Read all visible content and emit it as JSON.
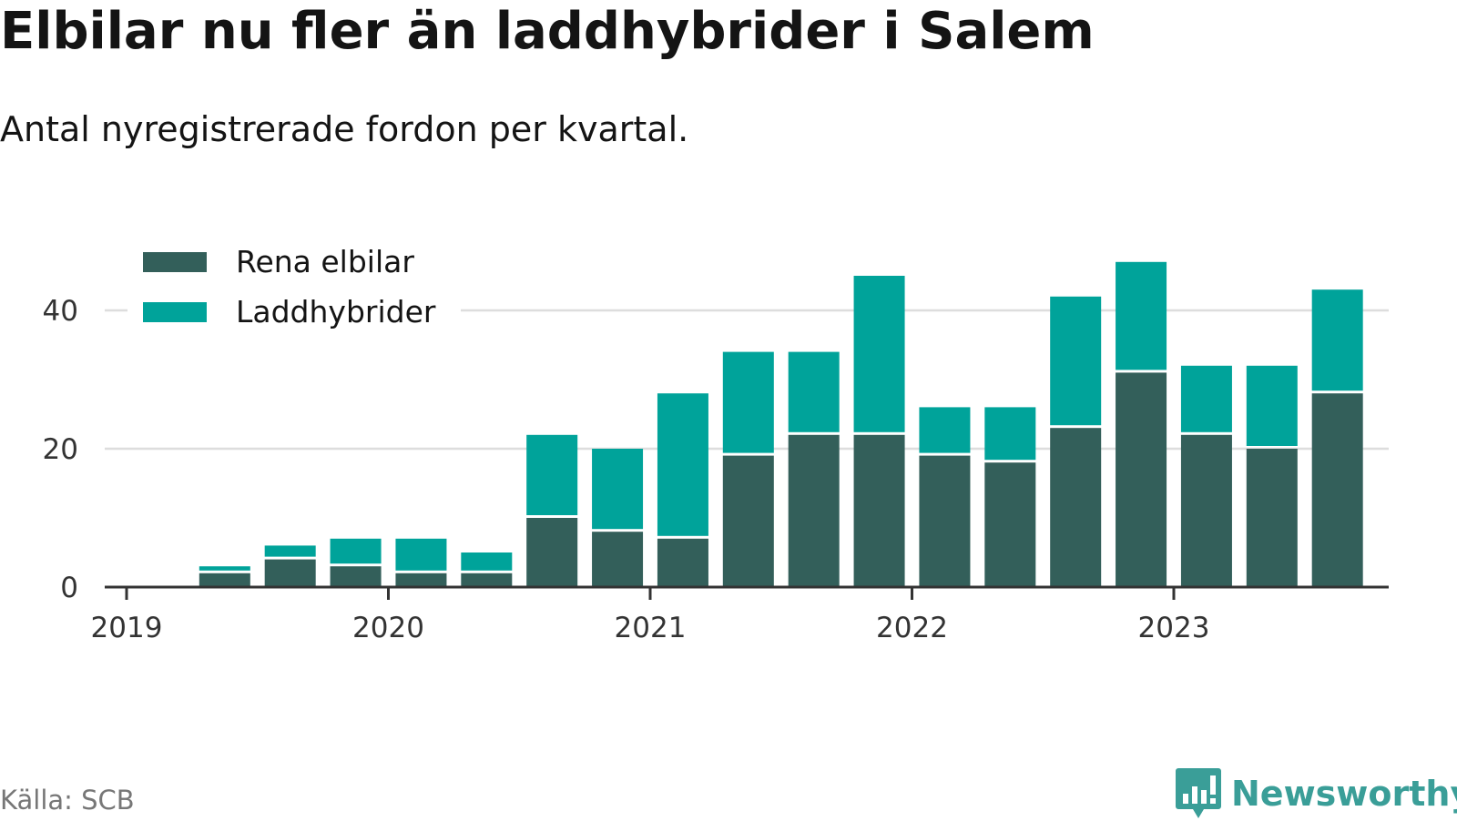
{
  "title": "Elbilar nu fler än laddhybrider i Salem",
  "subtitle": "Antal nyregistrerade fordon per kvartal.",
  "source": "Källa: SCB",
  "brand": "Newsworthy",
  "icons": {
    "brand": "newsworthy-bar-chart-icon"
  },
  "colors": {
    "rena_elbilar": "#335f5a",
    "laddhybrider": "#00a39a",
    "grid": "#dddddd",
    "axis": "#333333",
    "brand": "#3a9e98"
  },
  "chart_data": {
    "type": "bar",
    "stacked": true,
    "x_tick_labels": [
      "2019",
      "2020",
      "2021",
      "2022",
      "2023"
    ],
    "y_tick_labels": [
      "0",
      "20",
      "40"
    ],
    "ylim": [
      0,
      48
    ],
    "grid": true,
    "legend": "top-left",
    "categories": [
      "2019 Q2",
      "2019 Q3",
      "2019 Q4",
      "2020 Q1",
      "2020 Q2",
      "2020 Q3",
      "2020 Q4",
      "2021 Q1",
      "2021 Q2",
      "2021 Q3",
      "2021 Q4",
      "2022 Q1",
      "2022 Q2",
      "2022 Q3",
      "2022 Q4",
      "2023 Q1",
      "2023 Q2",
      "2023 Q3"
    ],
    "series": [
      {
        "name": "Rena elbilar",
        "values": [
          2,
          4,
          3,
          2,
          2,
          10,
          8,
          7,
          19,
          22,
          22,
          19,
          18,
          23,
          31,
          22,
          20,
          28
        ]
      },
      {
        "name": "Laddhybrider",
        "values": [
          1,
          2,
          4,
          5,
          3,
          12,
          12,
          21,
          15,
          12,
          23,
          7,
          8,
          19,
          16,
          10,
          12,
          15
        ]
      }
    ]
  }
}
